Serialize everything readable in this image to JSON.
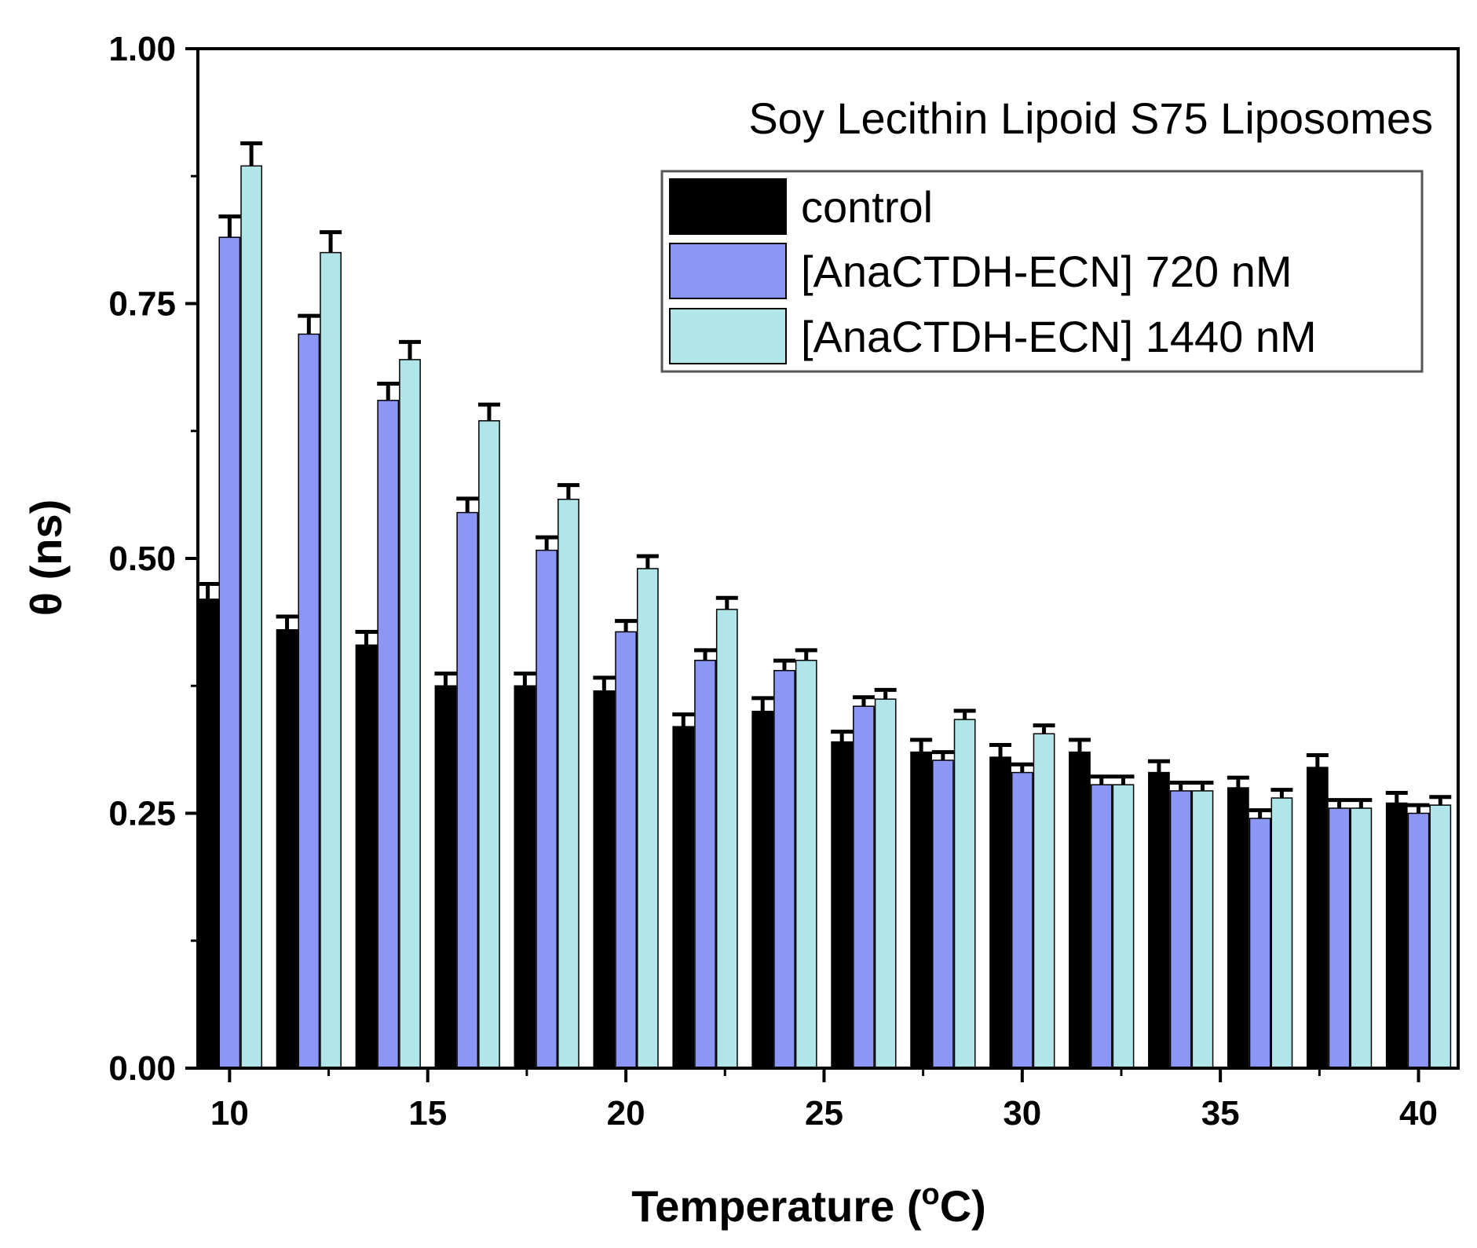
{
  "chart_data": {
    "type": "bar",
    "title": "Soy Lecithin Lipoid S75 Liposomes",
    "xlabel": "Temperature (",
    "xlabel_sup": "o",
    "xlabel_unit": "C)",
    "ylabel": "θ (ns)",
    "xlim": [
      9.2,
      41
    ],
    "ylim": [
      0,
      1.0
    ],
    "xticks": [
      10,
      15,
      20,
      25,
      30,
      35,
      40
    ],
    "xtick_labels": [
      "10",
      "15",
      "20",
      "25",
      "30",
      "35",
      "40"
    ],
    "yticks": [
      0,
      0.25,
      0.5,
      0.75,
      1.0
    ],
    "ytick_labels": [
      "0.00",
      "0.25",
      "0.50",
      "0.75",
      "1.00"
    ],
    "y_minor_ticks": [
      0.125,
      0.375,
      0.625,
      0.875
    ],
    "legend_position": "top-right",
    "categories": [
      10,
      12,
      14,
      16,
      18,
      20,
      22,
      24,
      26,
      28,
      30,
      32,
      34,
      36,
      38,
      40
    ],
    "series": [
      {
        "name": "control",
        "color": "#000000",
        "values": [
          0.46,
          0.43,
          0.415,
          0.375,
          0.375,
          0.37,
          0.335,
          0.35,
          0.32,
          0.31,
          0.305,
          0.31,
          0.29,
          0.275,
          0.295,
          0.26
        ],
        "errors": [
          0.015,
          0.013,
          0.013,
          0.012,
          0.012,
          0.013,
          0.012,
          0.013,
          0.01,
          0.012,
          0.012,
          0.012,
          0.011,
          0.01,
          0.012,
          0.01
        ]
      },
      {
        "name": "[AnaCTDH-ECN] 720 nM",
        "color": "#8c96f5",
        "values": [
          0.815,
          0.72,
          0.655,
          0.545,
          0.508,
          0.428,
          0.4,
          0.39,
          0.355,
          0.302,
          0.29,
          0.278,
          0.272,
          0.245,
          0.255,
          0.25
        ]
      },
      {
        "name": "[AnaCTDH-ECN] 1440 nM",
        "color": "#b0e6ea",
        "values": [
          0.885,
          0.8,
          0.695,
          0.635,
          0.558,
          0.49,
          0.45,
          0.4,
          0.362,
          0.342,
          0.328,
          0.278,
          0.272,
          0.265,
          0.255,
          0.258
        ]
      }
    ]
  }
}
